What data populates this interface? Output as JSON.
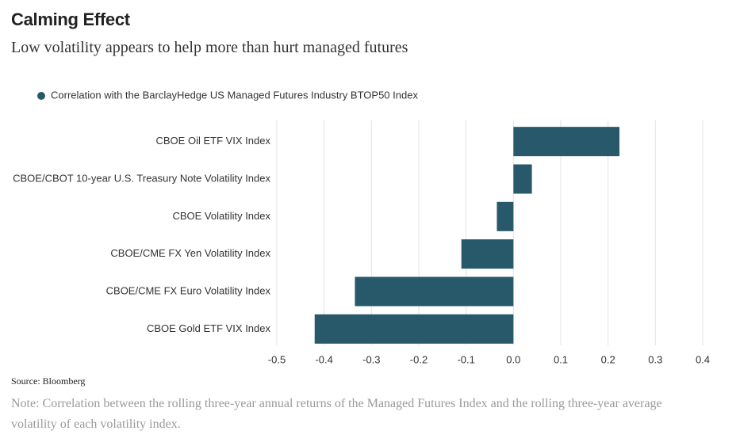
{
  "chart_data": {
    "type": "bar",
    "orientation": "horizontal",
    "title": "Calming Effect",
    "subtitle": "Low volatility appears to help more than hurt managed futures",
    "categories": [
      "CBOE Oil ETF VIX Index",
      "CBOE/CBOT 10-year U.S. Treasury Note Volatility Index",
      "CBOE Volatility Index",
      "CBOE/CME FX Yen Volatility Index",
      "CBOE/CME FX Euro Volatility Index",
      "CBOE Gold ETF VIX Index"
    ],
    "series": [
      {
        "name": "Correlation with the BarclayHedge US Managed Futures Industry BTOP50 Index",
        "color": "#28596a",
        "values": [
          0.224,
          0.039,
          -0.035,
          -0.11,
          -0.335,
          -0.42
        ]
      }
    ],
    "xlim": [
      -0.5,
      0.4
    ],
    "xticks": [
      -0.5,
      -0.4,
      -0.3,
      -0.2,
      -0.1,
      {
        "value": 0,
        "label": "0.0"
      },
      0.1,
      0.2,
      0.3,
      0.4
    ],
    "grid": true,
    "source": "Source: Bloomberg",
    "note": "Note: Correlation between the rolling three-year annual returns of the Managed Futures Index and the rolling three-year average volatility of each volatility index."
  }
}
